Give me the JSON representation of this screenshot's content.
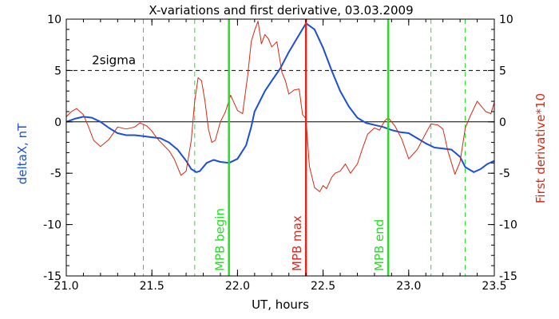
{
  "chart_data": {
    "type": "line",
    "title": "X-variations and first derivative, 03.03.2009",
    "xlabel": "UT, hours",
    "ylabel_left": "deltaX, nT",
    "ylabel_right": "First derivative*10",
    "xlim": [
      21.0,
      23.5
    ],
    "ylim": [
      -15,
      10
    ],
    "x_ticks": [
      21.0,
      21.5,
      22.0,
      22.5,
      23.0,
      23.5
    ],
    "x_tick_labels": [
      "21.0",
      "21.5",
      "22.0",
      "22.5",
      "23.0",
      "23.5"
    ],
    "y_ticks": [
      -15,
      -10,
      -5,
      0,
      5,
      10
    ],
    "y_tick_labels_left": [
      "-15",
      "-10",
      "-5",
      "0",
      "5",
      "10"
    ],
    "y_tick_labels_right": [
      "-15",
      "-10",
      "-5",
      "0",
      "5",
      "10"
    ],
    "grid": false,
    "colors": {
      "deltaX": "#1a4fd6",
      "derivative": "#d42a10",
      "green": "#22e022",
      "red": "#e0281a",
      "black": "#000000"
    },
    "reference_lines": {
      "zero_line": 0,
      "sigma_level": 5,
      "sigma_label": "2sigma"
    },
    "vertical_markers": [
      {
        "x": 21.95,
        "label": "MPB begin",
        "color": "#22e022",
        "style": "solid"
      },
      {
        "x": 22.4,
        "label": "MPB max",
        "color": "#e0281a",
        "style": "solid"
      },
      {
        "x": 22.88,
        "label": "MPB end",
        "color": "#22e022",
        "style": "solid"
      }
    ],
    "dashed_markers": [
      21.45,
      21.75,
      23.13,
      23.33
    ],
    "series": [
      {
        "color": "#1a4fd6",
        "axis": "left",
        "x": [
          21.0,
          21.05,
          21.1,
          21.15,
          21.2,
          21.25,
          21.3,
          21.35,
          21.4,
          21.45,
          21.5,
          21.55,
          21.6,
          21.65,
          21.7,
          21.73,
          21.76,
          21.78,
          21.82,
          21.86,
          21.9,
          21.95,
          22.0,
          22.05,
          22.08,
          22.1,
          22.13,
          22.16,
          22.2,
          22.25,
          22.3,
          22.35,
          22.4,
          22.45,
          22.5,
          22.55,
          22.6,
          22.65,
          22.7,
          22.75,
          22.8,
          22.85,
          22.9,
          22.95,
          23.0,
          23.05,
          23.1,
          23.15,
          23.2,
          23.25,
          23.3,
          23.33,
          23.38,
          23.42,
          23.46,
          23.5
        ],
        "values": [
          0.0,
          0.3,
          0.5,
          0.4,
          0.0,
          -0.6,
          -1.1,
          -1.3,
          -1.3,
          -1.4,
          -1.5,
          -1.6,
          -2.0,
          -2.7,
          -3.8,
          -4.6,
          -4.9,
          -4.8,
          -4.0,
          -3.7,
          -3.9,
          -4.0,
          -3.6,
          -2.3,
          -0.5,
          1.0,
          2.0,
          3.0,
          4.0,
          5.2,
          6.8,
          8.2,
          9.6,
          9.0,
          7.2,
          5.0,
          3.0,
          1.5,
          0.4,
          -0.1,
          -0.3,
          -0.5,
          -0.8,
          -1.0,
          -1.1,
          -1.6,
          -2.1,
          -2.5,
          -2.6,
          -2.7,
          -3.4,
          -4.4,
          -4.9,
          -4.6,
          -4.1,
          -3.8
        ]
      },
      {
        "color": "#d42a10",
        "axis": "right",
        "x": [
          21.0,
          21.03,
          21.06,
          21.1,
          21.13,
          21.16,
          21.2,
          21.25,
          21.3,
          21.35,
          21.4,
          21.43,
          21.47,
          21.5,
          21.53,
          21.57,
          21.6,
          21.63,
          21.67,
          21.7,
          21.73,
          21.75,
          21.77,
          21.79,
          21.81,
          21.83,
          21.85,
          21.87,
          21.9,
          21.93,
          21.96,
          22.0,
          22.03,
          22.06,
          22.08,
          22.1,
          22.12,
          22.14,
          22.16,
          22.18,
          22.2,
          22.23,
          22.26,
          22.28,
          22.3,
          22.33,
          22.36,
          22.38,
          22.4,
          22.42,
          22.45,
          22.48,
          22.5,
          22.52,
          22.55,
          22.57,
          22.6,
          22.63,
          22.66,
          22.7,
          22.73,
          22.76,
          22.8,
          22.83,
          22.86,
          22.88,
          22.92,
          22.96,
          23.0,
          23.05,
          23.1,
          23.13,
          23.17,
          23.2,
          23.23,
          23.27,
          23.3,
          23.33,
          23.36,
          23.4,
          23.42,
          23.45,
          23.48,
          23.5
        ],
        "values": [
          0.5,
          1.0,
          1.3,
          0.7,
          -0.5,
          -1.8,
          -2.4,
          -1.7,
          -0.5,
          -0.7,
          -0.5,
          -0.1,
          -0.4,
          -0.9,
          -1.6,
          -2.3,
          -2.8,
          -3.6,
          -5.2,
          -4.8,
          -1.8,
          2.0,
          4.3,
          4.0,
          2.0,
          -0.7,
          -2.0,
          -1.8,
          0.0,
          1.0,
          2.6,
          1.1,
          0.8,
          4.6,
          7.8,
          8.9,
          9.8,
          7.6,
          8.5,
          8.1,
          7.3,
          7.8,
          4.8,
          4.0,
          2.7,
          3.1,
          3.2,
          0.7,
          0.3,
          -4.3,
          -6.4,
          -6.8,
          -6.2,
          -6.5,
          -5.4,
          -5.0,
          -4.8,
          -4.1,
          -5.0,
          -4.1,
          -2.6,
          -1.2,
          -0.6,
          -0.8,
          0.1,
          0.4,
          -0.4,
          -1.7,
          -3.6,
          -2.7,
          -1.1,
          -0.2,
          -0.3,
          -0.7,
          -2.9,
          -5.1,
          -3.9,
          -0.6,
          0.6,
          2.0,
          1.6,
          1.0,
          0.8,
          1.9
        ]
      }
    ]
  }
}
